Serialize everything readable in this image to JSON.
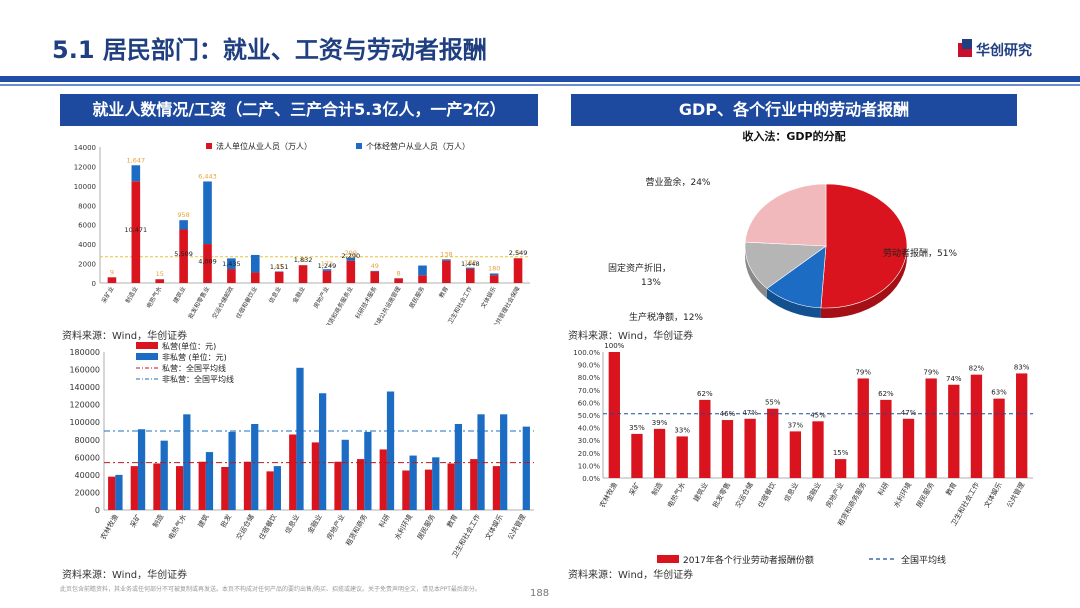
{
  "header": {
    "title": "5.1 居民部门：就业、工资与劳动者报酬",
    "logo_text": "华创研究"
  },
  "panels": {
    "left_title": "就业人数情况/工资（二产、三产合计5.3亿人，一产2亿）",
    "right_title": "GDP、各个行业中的劳动者报酬"
  },
  "sources": {
    "src1": "资料来源：Wind，华创证券",
    "src2": "资料来源：Wind，华创证券",
    "src3": "资料来源：Wind，华创证券",
    "src4": "资料来源：Wind，华创证券"
  },
  "footer": {
    "disclaimer": "此页包含前瞻资料，其业务或任何部分不可被复制或再发送。本页不构成对任何产品的要约出售/购买、招揽或建议。关于免责声明全文，请见本PPT最后部分。",
    "page_number": "188"
  },
  "colors": {
    "red": "#d9141e",
    "blue": "#1b6cc2",
    "navy": "#1d4a9e",
    "gray": "#b5b5b5",
    "pink": "#f2b9bd",
    "orange_label": "#e8a23a"
  },
  "chart_data": [
    {
      "id": "employment",
      "type": "bar",
      "stacked": true,
      "title": "",
      "legend": [
        "法人单位从业人员（万人）",
        "个体经营户从业人员（万人）"
      ],
      "categories": [
        "采矿业",
        "制造业",
        "电热气水",
        "建筑业",
        "批发和零售业",
        "交运仓储邮政",
        "住宿和餐饮业",
        "信息业",
        "金融业",
        "房地产业",
        "租赁和商务服务业",
        "科研技术服务",
        "水利环境公共设施管理",
        "居民服务",
        "教育",
        "卫生和社会工作",
        "文体娱乐",
        "公共管理社会保障"
      ],
      "series": [
        {
          "name": "法人单位从业人员（万人）",
          "values": [
            580,
            10471,
            380,
            5509,
            4009,
            1435,
            1088,
            1151,
            1832,
            1249,
            2290,
            1200,
            480,
            800,
            2300,
            1448,
            800,
            2549
          ],
          "labels": [
            "",
            "10,471",
            "",
            "5,509",
            "4,009",
            "1,435",
            "",
            "1,151",
            "1,832",
            "1,249",
            "2,290",
            "",
            "",
            "",
            "",
            "1,448",
            "",
            "2,549"
          ]
        },
        {
          "name": "个体经营户从业人员（万人）",
          "values": [
            9,
            1647,
            15,
            958,
            6443,
            1100,
            1800,
            45,
            0,
            172,
            299,
            49,
            8,
            1000,
            138,
            132,
            180,
            0
          ],
          "labels": [
            "9",
            "1,647",
            "15",
            "958",
            "6,443",
            "",
            "",
            "45",
            "0",
            "172",
            "299",
            "49",
            "8",
            "",
            "138",
            "132",
            "180",
            "0"
          ]
        }
      ],
      "avg_line": 2700,
      "ylim": [
        0,
        14000
      ],
      "yticks": [
        0,
        2000,
        4000,
        6000,
        8000,
        10000,
        12000,
        14000
      ]
    },
    {
      "id": "wages",
      "type": "bar",
      "title": "",
      "legend": [
        "私营(单位：元)",
        "非私营 (单位：元)",
        "私营：全国平均线",
        "非私营：全国平均线"
      ],
      "categories": [
        "农林牧渔",
        "采矿",
        "制造",
        "电热气水",
        "建筑",
        "批发",
        "交运仓储",
        "住宿餐饮",
        "信息业",
        "金融业",
        "房地产业",
        "租赁和商务",
        "科研",
        "水利环境",
        "居民服务",
        "教育",
        "卫生和社会工作",
        "文体娱乐",
        "公共管理"
      ],
      "series": [
        {
          "name": "私营",
          "values": [
            38000,
            50000,
            53000,
            50000,
            55000,
            49000,
            55000,
            44000,
            86000,
            77000,
            55000,
            58000,
            69000,
            45000,
            46000,
            53000,
            58000,
            50000,
            null
          ]
        },
        {
          "name": "非私营",
          "values": [
            40000,
            92000,
            79000,
            109000,
            66000,
            89000,
            98000,
            50000,
            162000,
            133000,
            80000,
            89000,
            135000,
            62000,
            60000,
            98000,
            109000,
            109000,
            95000
          ]
        }
      ],
      "avg_private": 54000,
      "avg_nonprivate": 90000,
      "ylim": [
        0,
        180000
      ],
      "yticks": [
        0,
        20000,
        40000,
        60000,
        80000,
        100000,
        120000,
        140000,
        160000,
        180000
      ]
    },
    {
      "id": "gdp_pie",
      "type": "pie",
      "title": "收入法：GDP的分配",
      "slices": [
        {
          "label": "劳动者报酬，51%",
          "value": 51
        },
        {
          "label": "生产税净额，12%",
          "value": 12
        },
        {
          "label": "固定资产折旧，13%",
          "value": 13
        },
        {
          "label": "营业盈余，24%",
          "value": 24
        }
      ]
    },
    {
      "id": "labor_share",
      "type": "bar",
      "title": "",
      "legend": [
        "2017年各个行业劳动者报酬份额",
        "全国平均线"
      ],
      "categories": [
        "农林牧渔",
        "采矿",
        "制造",
        "电热气水",
        "建筑业",
        "批发零售",
        "交运仓储",
        "住宿餐饮",
        "信息业",
        "金融业",
        "房地产业",
        "租赁和商务服务",
        "科研",
        "水利环境",
        "居民服务",
        "教育",
        "卫生和社会工作",
        "文体娱乐",
        "公共管理"
      ],
      "values": [
        100,
        35,
        39,
        33,
        62,
        46,
        47,
        55,
        37,
        45,
        15,
        79,
        62,
        47,
        79,
        74,
        82,
        63,
        83
      ],
      "value_labels": [
        "100%",
        "35%",
        "39%",
        "33%",
        "62%",
        "46%",
        "47%",
        "55%",
        "37%",
        "45%",
        "15%",
        "79%",
        "62%",
        "47%",
        "79%",
        "74%",
        "82%",
        "63%",
        "83%"
      ],
      "avg_line": 51,
      "ylim": [
        0,
        100
      ],
      "yticks": [
        "0.0%",
        "10.0%",
        "20.0%",
        "30.0%",
        "40.0%",
        "50.0%",
        "60.0%",
        "70.0%",
        "80.0%",
        "90.0%",
        "100.0%"
      ]
    }
  ]
}
